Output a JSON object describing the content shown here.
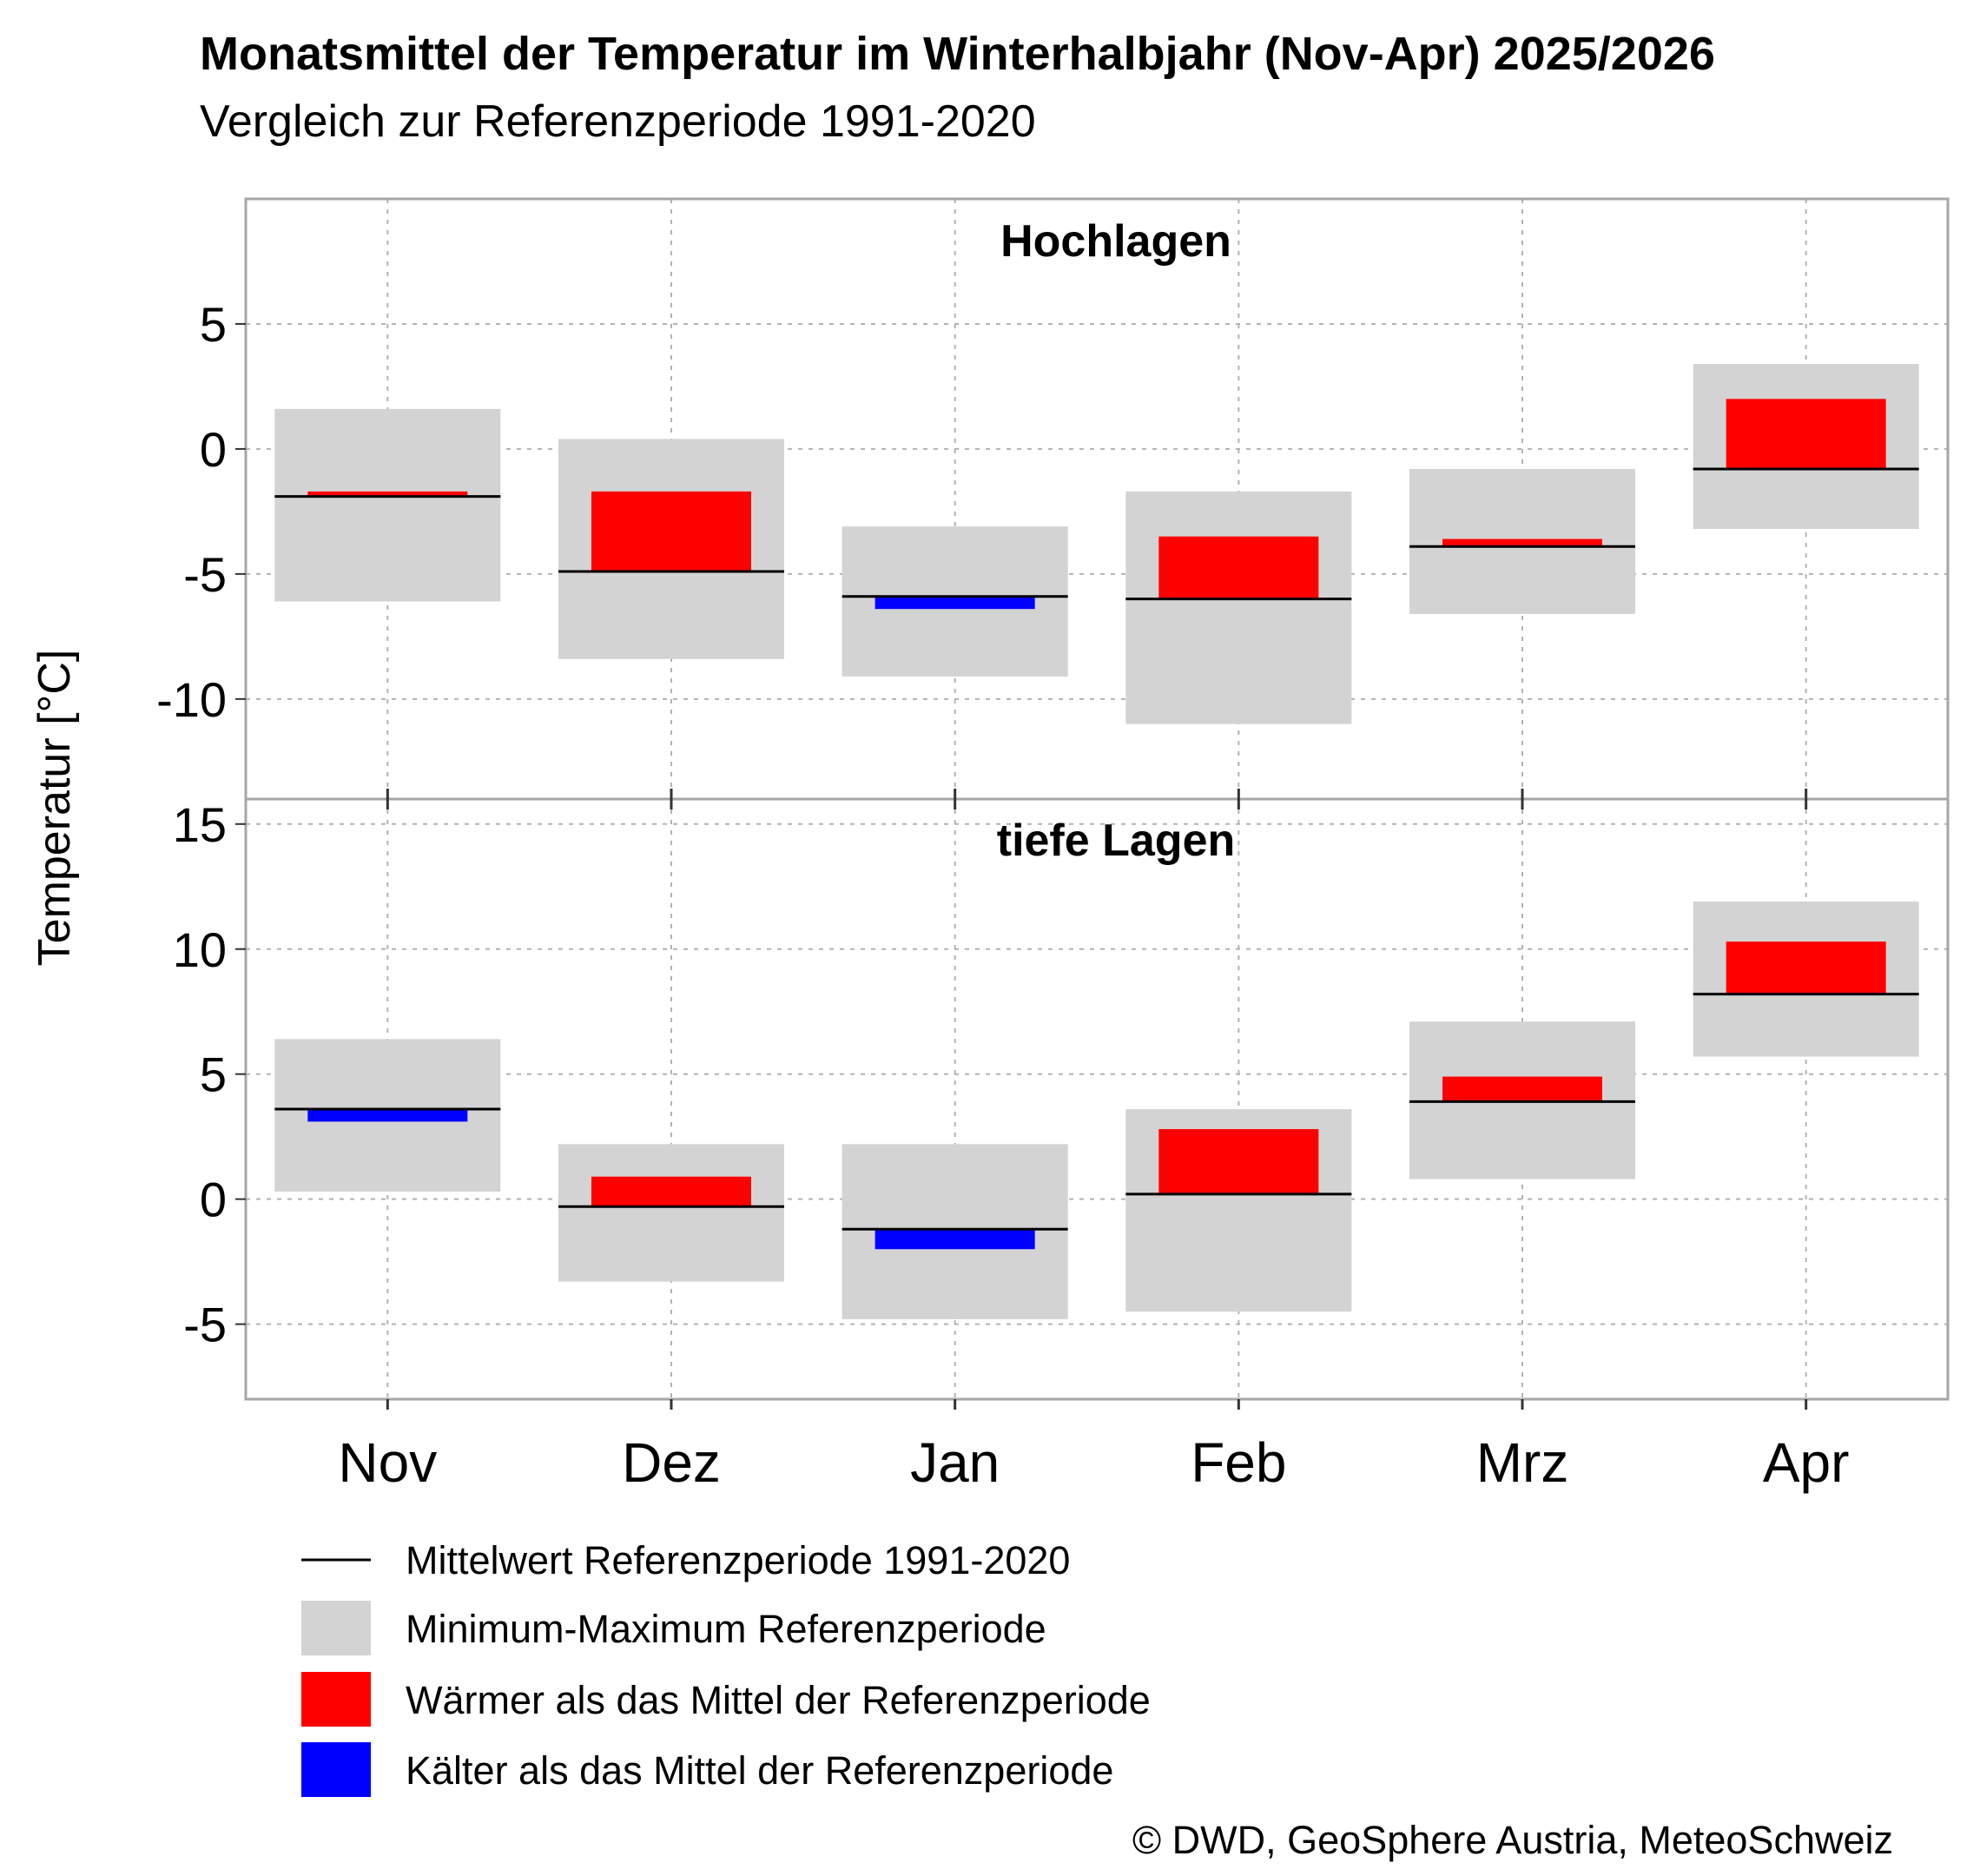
{
  "title": "Monatsmittel der Temperatur im Winterhalbjahr (Nov-Apr) 2025/2026",
  "subtitle": "Vergleich zur Referenzperiode 1991-2020",
  "ylabel": "Temperatur [°C]",
  "copyright": "© DWD, GeoSphere Austria, MeteoSchweiz",
  "colors": {
    "range": "#d3d3d3",
    "warmer": "#ff0000",
    "colder": "#0000ff",
    "mean": "#000000",
    "grid": "#b3b3b3",
    "panel_border": "#a6a6a6"
  },
  "legend": {
    "mean": "Mittelwert Referenzperiode 1991-2020",
    "range": "Minimum-Maximum Referenzperiode",
    "warmer": "Wärmer als das Mittel der Referenzperiode",
    "colder": "Kälter als das Mittel der Referenzperiode"
  },
  "chart_data": {
    "type": "bar",
    "categories": [
      "Nov",
      "Dez",
      "Jan",
      "Feb",
      "Mrz",
      "Apr"
    ],
    "grid": true,
    "panels": [
      {
        "name": "Hochlagen",
        "ylim": [
          -14,
          10
        ],
        "yticks": [
          5,
          0,
          -5,
          -10
        ],
        "ref_mean": [
          -1.9,
          -4.9,
          -5.9,
          -6.0,
          -3.9,
          -0.8
        ],
        "ref_min": [
          -6.1,
          -8.4,
          -9.1,
          -11.0,
          -6.6,
          -3.2
        ],
        "ref_max": [
          1.6,
          0.4,
          -3.1,
          -1.7,
          -0.8,
          3.4
        ],
        "value_2025_2026": [
          -1.7,
          -1.7,
          -6.4,
          -3.5,
          -3.6,
          2.0
        ]
      },
      {
        "name": "tiefe Lagen",
        "ylim": [
          -8,
          16
        ],
        "yticks": [
          15,
          10,
          5,
          0,
          -5
        ],
        "ref_mean": [
          3.6,
          -0.3,
          -1.2,
          0.2,
          3.9,
          8.2
        ],
        "ref_min": [
          0.3,
          -3.3,
          -4.8,
          -4.5,
          0.8,
          5.7
        ],
        "ref_max": [
          6.4,
          2.2,
          2.2,
          3.6,
          7.1,
          11.9
        ],
        "value_2025_2026": [
          3.1,
          0.9,
          -2.0,
          2.8,
          4.9,
          10.3
        ]
      }
    ]
  }
}
